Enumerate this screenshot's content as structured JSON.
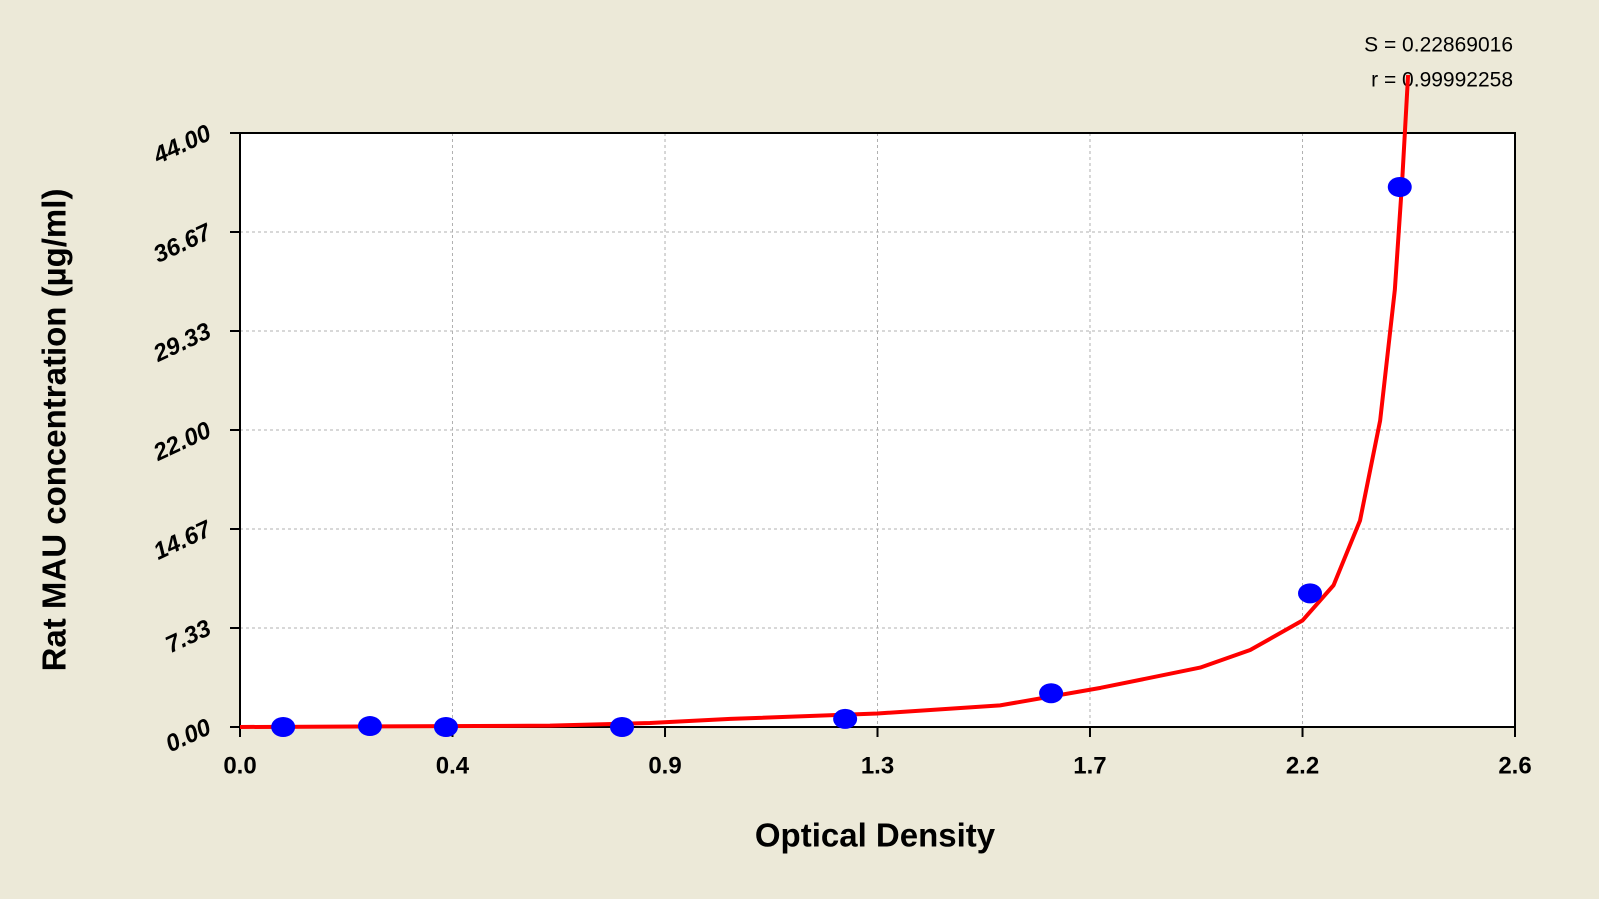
{
  "chart_data": {
    "type": "scatter",
    "x_label": "Optical Density",
    "y_label": "Rat MAU concentration (µg/ml)",
    "annotations": [
      "S = 0.22869016",
      "r = 0.99992258"
    ],
    "xlim": [
      0,
      2.6
    ],
    "xticks": [
      {
        "value": 0,
        "label": "0.0"
      },
      {
        "value": 0.4333,
        "label": "0.4"
      },
      {
        "value": 0.8667,
        "label": "0.9"
      },
      {
        "value": 1.3,
        "label": "1.3"
      },
      {
        "value": 1.7333,
        "label": "1.7"
      },
      {
        "value": 2.1667,
        "label": "2.2"
      },
      {
        "value": 2.6,
        "label": "2.6"
      }
    ],
    "ylim": [
      0,
      44
    ],
    "yticks": [
      {
        "value": 0,
        "label": "0.00"
      },
      {
        "value": 7.3333,
        "label": "7.33"
      },
      {
        "value": 14.6667,
        "label": "14.67"
      },
      {
        "value": 22,
        "label": "22.00"
      },
      {
        "value": 29.3333,
        "label": "29.33"
      },
      {
        "value": 36.6667,
        "label": "36.67"
      },
      {
        "value": 44,
        "label": "44.00"
      }
    ],
    "grid": true,
    "series": [
      {
        "color": "#0000ff",
        "x": [
          0.088,
          0.265,
          0.42,
          0.779,
          1.234,
          1.654,
          2.182,
          2.365
        ],
        "values": [
          0,
          0.07,
          0,
          0,
          0.6,
          2.5,
          9.9,
          40
        ]
      },
      {
        "type": "line",
        "color": "#ff0000",
        "x": [
          0,
          0.632,
          0.836,
          1.0,
          1.3,
          1.55,
          1.755,
          1.958,
          2.06,
          2.167,
          2.23,
          2.284,
          2.325,
          2.355,
          2.37,
          2.382
        ],
        "values": [
          0,
          0.1,
          0.3,
          0.6,
          1.0,
          1.6,
          2.9,
          4.4,
          5.7,
          7.9,
          10.5,
          15.3,
          22.7,
          32.4,
          40.5,
          48.3
        ]
      }
    ]
  }
}
